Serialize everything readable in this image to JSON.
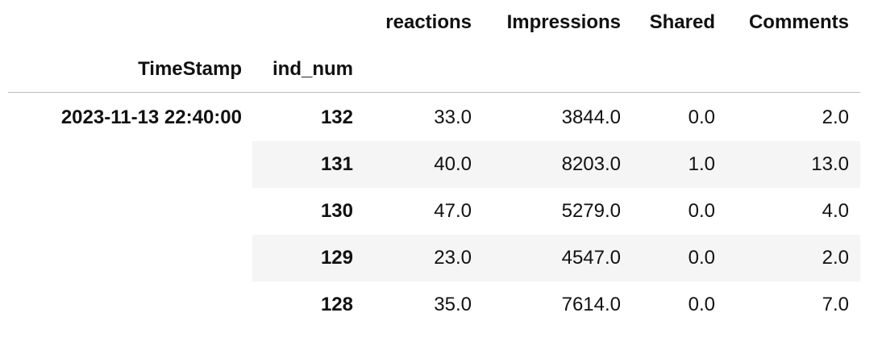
{
  "table": {
    "columns": [
      "reactions",
      "Impressions",
      "Shared",
      "Comments"
    ],
    "index_names": [
      "TimeStamp",
      "ind_num"
    ],
    "timestamp": "2023-11-13 22:40:00",
    "rows": [
      [
        "132",
        "33.0",
        "3844.0",
        "0.0",
        "2.0"
      ],
      [
        "131",
        "40.0",
        "8203.0",
        "1.0",
        "13.0"
      ],
      [
        "130",
        "47.0",
        "5279.0",
        "0.0",
        "4.0"
      ],
      [
        "129",
        "23.0",
        "4547.0",
        "0.0",
        "2.0"
      ],
      [
        "128",
        "35.0",
        "7614.0",
        "0.0",
        "7.0"
      ]
    ]
  }
}
